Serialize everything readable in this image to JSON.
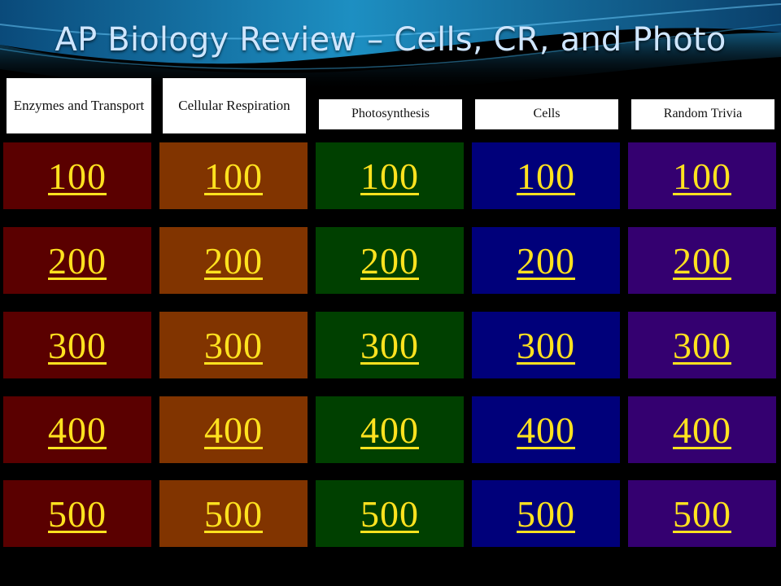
{
  "slide": {
    "title": "AP Biology Review – Cells, CR, and Photo"
  },
  "categories": [
    {
      "label": "Enzymes and Transport",
      "color": "#5a0000"
    },
    {
      "label": "Cellular Respiration",
      "color": "#813400"
    },
    {
      "label": "Photosynthesis",
      "color": "#004000"
    },
    {
      "label": "Cells",
      "color": "#00007a"
    },
    {
      "label": "Random Trivia",
      "color": "#340070"
    }
  ],
  "point_values": [
    "100",
    "200",
    "300",
    "400",
    "500"
  ],
  "colors": {
    "link": "#ffe21f",
    "background": "#000000",
    "title": "#cfe6ff"
  }
}
